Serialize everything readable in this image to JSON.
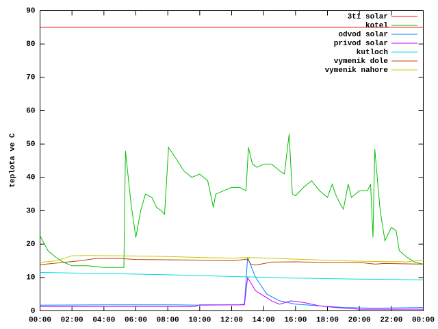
{
  "chart_data": {
    "type": "line",
    "y_label": "teplota ve C",
    "xlim": [
      0,
      24
    ],
    "ylim": [
      0,
      90
    ],
    "yticks": [
      0,
      10,
      20,
      30,
      40,
      50,
      60,
      70,
      80,
      90
    ],
    "xticks": [
      {
        "value": 0,
        "label": "00:00"
      },
      {
        "value": 2,
        "label": "02:00"
      },
      {
        "value": 4,
        "label": "04:00"
      },
      {
        "value": 6,
        "label": "06:00"
      },
      {
        "value": 8,
        "label": "08:00"
      },
      {
        "value": 10,
        "label": "10:00"
      },
      {
        "value": 12,
        "label": "12:00"
      },
      {
        "value": 14,
        "label": "14:00"
      },
      {
        "value": 16,
        "label": "16:00"
      },
      {
        "value": 18,
        "label": "18:00"
      },
      {
        "value": 20,
        "label": "20:00"
      },
      {
        "value": 22,
        "label": "22:00"
      },
      {
        "value": 24,
        "label": "00:00"
      }
    ],
    "grid": false,
    "legend": "top-right",
    "series": [
      {
        "name": "3ti solar",
        "color": "#ff0000",
        "x": [
          0,
          24
        ],
        "values": [
          85,
          85
        ]
      },
      {
        "name": "kotel",
        "color": "#00c000",
        "x": [
          0,
          0.5,
          1,
          1.5,
          2,
          3,
          4,
          5,
          5.25,
          5.35,
          5.7,
          6,
          6.3,
          6.6,
          7,
          7.3,
          7.6,
          7.8,
          8.05,
          8.6,
          9,
          9.5,
          10,
          10.5,
          10.85,
          11,
          11.5,
          12,
          12.5,
          12.9,
          13.05,
          13.3,
          13.6,
          14,
          14.5,
          15,
          15.3,
          15.6,
          15.8,
          16,
          16.5,
          17,
          17.5,
          18,
          18.3,
          18.5,
          18.8,
          19,
          19.3,
          19.5,
          20,
          20.5,
          20.7,
          20.85,
          20.96,
          21.3,
          21.6,
          22,
          22.3,
          22.5,
          23,
          23.5,
          24
        ],
        "values": [
          22.5,
          18,
          16,
          14.5,
          13.5,
          13.5,
          13,
          13,
          13,
          48,
          32,
          22,
          30,
          35,
          34,
          31,
          30,
          29,
          49,
          45,
          42,
          40,
          41,
          39,
          31,
          35,
          36,
          37,
          37,
          36,
          49,
          44,
          43,
          44,
          44,
          42,
          41,
          53,
          35,
          34.5,
          37,
          39,
          36,
          34,
          38,
          35,
          32,
          30.5,
          38,
          34,
          36,
          36,
          38,
          22,
          48.5,
          30,
          21,
          25,
          24,
          18,
          16,
          14.5,
          14
        ]
      },
      {
        "name": "odvod solar",
        "color": "#0080ff",
        "x": [
          0,
          4,
          8,
          10,
          12.5,
          12.8,
          13.0,
          13.5,
          14.2,
          15,
          16,
          17.5,
          19,
          21,
          24
        ],
        "values": [
          1.7,
          1.8,
          1.8,
          1.7,
          1.8,
          2,
          16,
          10,
          5,
          3,
          2,
          1.5,
          1,
          0.8,
          1
        ]
      },
      {
        "name": "privod solar",
        "color": "#c000ff",
        "x": [
          0,
          9.7,
          10,
          12.8,
          13.0,
          13.5,
          14.5,
          15,
          15.7,
          16.5,
          17.5,
          18.5,
          20,
          24
        ],
        "values": [
          1.3,
          1.3,
          1.8,
          1.8,
          10,
          6,
          3,
          2,
          3,
          2.5,
          1.5,
          1,
          0.5,
          0.5
        ]
      },
      {
        "name": "kutloch",
        "color": "#00dddd",
        "x": [
          0,
          4,
          8,
          12,
          13,
          16,
          20,
          24
        ],
        "values": [
          11.5,
          11.2,
          10.8,
          10.3,
          10.2,
          9.8,
          9.5,
          9.3
        ]
      },
      {
        "name": "vymenik dole",
        "color": "#c04000",
        "x": [
          0,
          1,
          2.5,
          3.5,
          5,
          6,
          10,
          12,
          13,
          13.2,
          13.5,
          14.5,
          16,
          18,
          20,
          21,
          21.5,
          24
        ],
        "values": [
          13.8,
          14.3,
          15,
          15.7,
          15.7,
          15.4,
          15.2,
          15,
          15.5,
          14,
          13.7,
          14.6,
          14.7,
          14.5,
          14.5,
          14,
          14.2,
          14
        ]
      },
      {
        "name": "vymenik nahore",
        "color": "#c8c800",
        "x": [
          0,
          1,
          2,
          3,
          5,
          8,
          10,
          12,
          13,
          16,
          19,
          21,
          23,
          24
        ],
        "values": [
          14.5,
          15,
          16.5,
          16.6,
          16.5,
          16.3,
          16,
          15.8,
          16,
          15.5,
          15,
          14.8,
          14.7,
          15.2
        ]
      }
    ]
  }
}
